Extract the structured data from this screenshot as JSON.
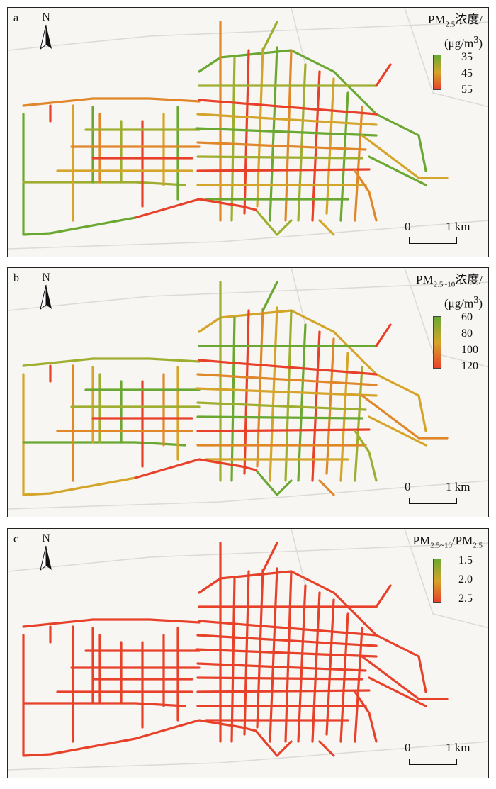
{
  "panels": [
    {
      "label": "a",
      "north": "N",
      "legend_title_html": "PM<sub>2.5</sub>浓度/",
      "legend_unit_html": "(μg/m<sup>3</sup>)",
      "legend_ticks": [
        "35",
        "45",
        "55"
      ],
      "scale": {
        "zero": "0",
        "one": "1 km"
      }
    },
    {
      "label": "b",
      "north": "N",
      "legend_title_html": "PM<sub>2.5~10</sub>浓度/",
      "legend_unit_html": "(μg/m<sup>3</sup>)",
      "legend_ticks": [
        "60",
        "80",
        "100",
        "120"
      ],
      "scale": {
        "zero": "0",
        "one": "1 km"
      }
    },
    {
      "label": "c",
      "north": "N",
      "legend_title_html": "PM<sub>2.5~10</sub>/PM<sub>2.5</sub>",
      "legend_unit_html": "",
      "legend_ticks": [
        "1.5",
        "2.0",
        "2.5"
      ],
      "scale": {
        "zero": "0",
        "one": "1 km"
      }
    }
  ],
  "colors": {
    "low": "#6aa832",
    "mid": "#d4a52a",
    "high": "#e8412a"
  }
}
